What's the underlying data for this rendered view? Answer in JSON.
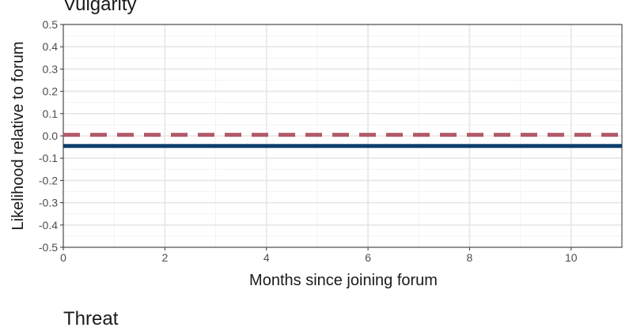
{
  "chart_data": [
    {
      "type": "line",
      "title": "Vulgarity",
      "xlabel": "Months since joining forum",
      "ylabel": "Likelihood relative to forum",
      "xlim": [
        0,
        11
      ],
      "ylim": [
        -0.5,
        0.5
      ],
      "x_ticks": [
        0,
        2,
        4,
        6,
        8,
        10
      ],
      "x_tick_labels": [
        "0",
        "2",
        "4",
        "6",
        "8",
        "10"
      ],
      "y_ticks": [
        0.5,
        0.4,
        0.3,
        0.2,
        0.1,
        0.0,
        -0.1,
        -0.2,
        -0.3,
        -0.4,
        -0.5
      ],
      "y_tick_labels": [
        "0.5",
        "0.4",
        "0.3",
        "0.2",
        "0.1",
        "0.0",
        "-0.1",
        "-0.2",
        "-0.3",
        "-0.4",
        "-0.5"
      ],
      "grid": true,
      "legend": "none",
      "series": [
        {
          "x": [
            0,
            11
          ],
          "y": [
            -0.045,
            -0.045
          ],
          "color": "#0d3f6e",
          "style": "solid"
        },
        {
          "x": [
            0,
            11
          ],
          "y": [
            0.005,
            0.005
          ],
          "color": "#b35a6a",
          "style": "dashed"
        }
      ]
    },
    {
      "type": "line",
      "title": "Threat"
    }
  ],
  "colors": {
    "background": "#ffffff",
    "grid_major": "#e6e6e6",
    "grid_minor": "#f3f3f3",
    "axis_text": "#4d4d4d",
    "title_text": "#1a1a1a"
  }
}
